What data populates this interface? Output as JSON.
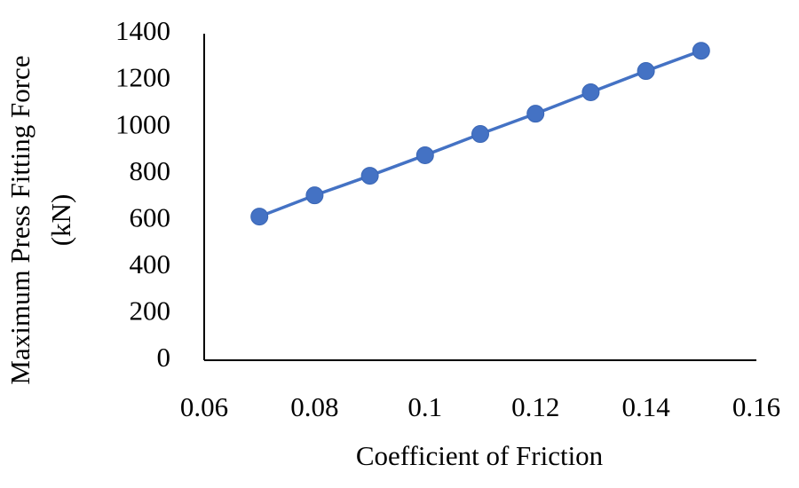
{
  "chart_data": {
    "type": "line",
    "xlabel": "Coefficient of Friction",
    "ylabel": [
      "Maximum Press Fitting Force",
      "(kN)"
    ],
    "x": [
      0.07,
      0.08,
      0.09,
      0.1,
      0.11,
      0.12,
      0.13,
      0.14,
      0.15
    ],
    "series": [
      {
        "color": "#4472c4",
        "values": [
          616,
          707,
          791,
          879,
          970,
          1057,
          1149,
          1240,
          1327
        ]
      }
    ],
    "xlim": [
      0.06,
      0.16
    ],
    "xticks": [
      0.06,
      0.08,
      0.1,
      0.12,
      0.14,
      0.16
    ],
    "ylim": [
      0,
      1400
    ],
    "yticks": [
      0,
      200,
      400,
      600,
      800,
      1000,
      1200,
      1400
    ],
    "grid": false,
    "markers": true
  }
}
